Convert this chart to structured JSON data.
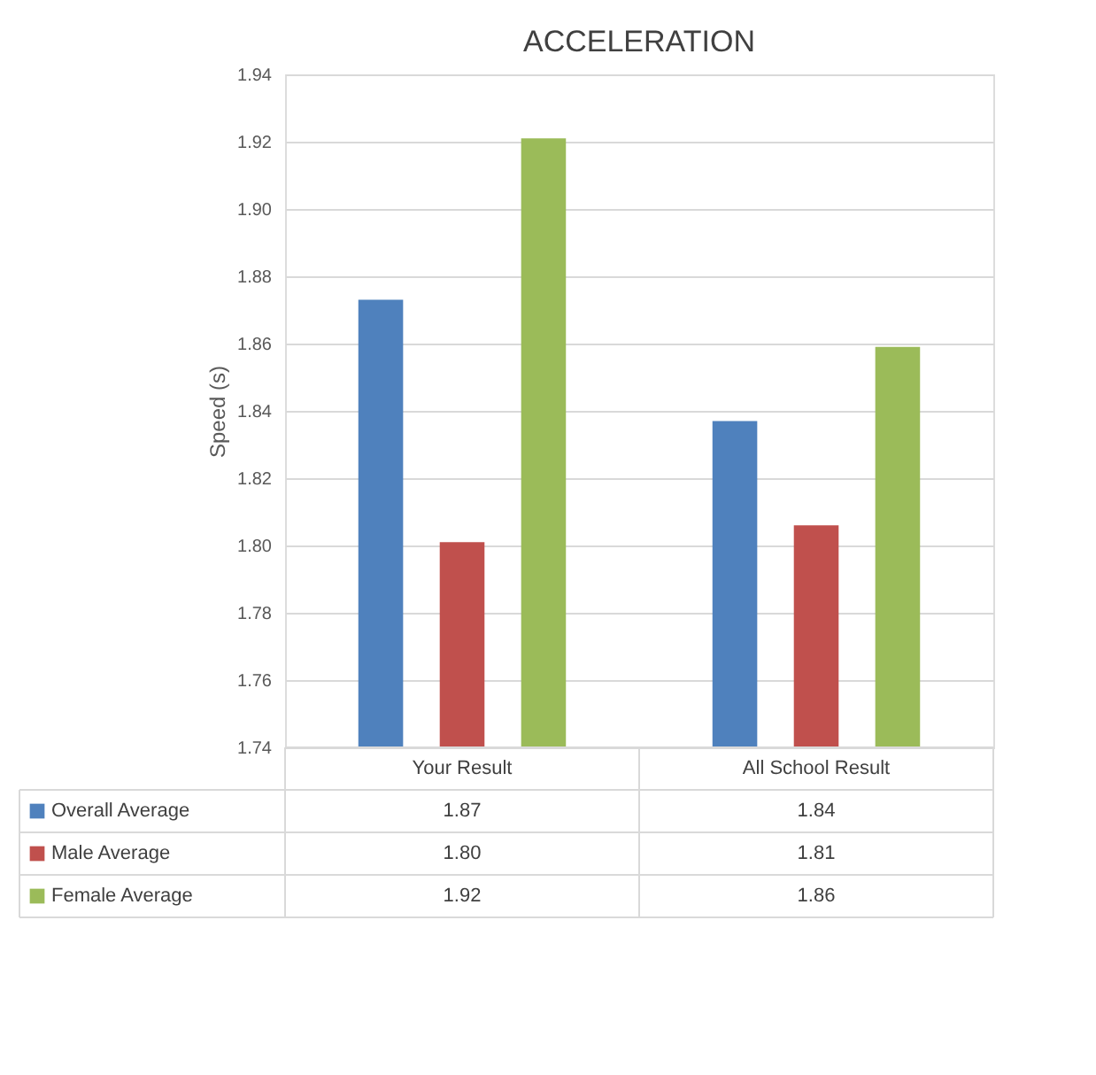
{
  "chart_data": {
    "type": "bar",
    "title": "ACCELERATION",
    "ylabel": "Speed (s)",
    "categories": [
      "Your Result",
      "All School Result"
    ],
    "series": [
      {
        "name": "Overall Average",
        "color": "#4f81bd",
        "values": [
          1.873,
          1.837
        ],
        "value_labels": [
          "1.87",
          "1.84"
        ]
      },
      {
        "name": "Male Average",
        "color": "#c0504d",
        "values": [
          1.801,
          1.806
        ],
        "value_labels": [
          "1.80",
          "1.81"
        ]
      },
      {
        "name": "Female Average",
        "color": "#9bbb59",
        "values": [
          1.921,
          1.859
        ],
        "value_labels": [
          "1.92",
          "1.86"
        ]
      }
    ],
    "ylim": [
      1.74,
      1.94
    ],
    "yticks": [
      1.74,
      1.76,
      1.78,
      {
        "value": 1.8,
        "label": "1.80"
      },
      1.82,
      1.84,
      1.86,
      1.88,
      {
        "value": 1.9,
        "label": "1.90"
      },
      1.92,
      1.94
    ],
    "grid": "y",
    "legend": "bottom"
  }
}
